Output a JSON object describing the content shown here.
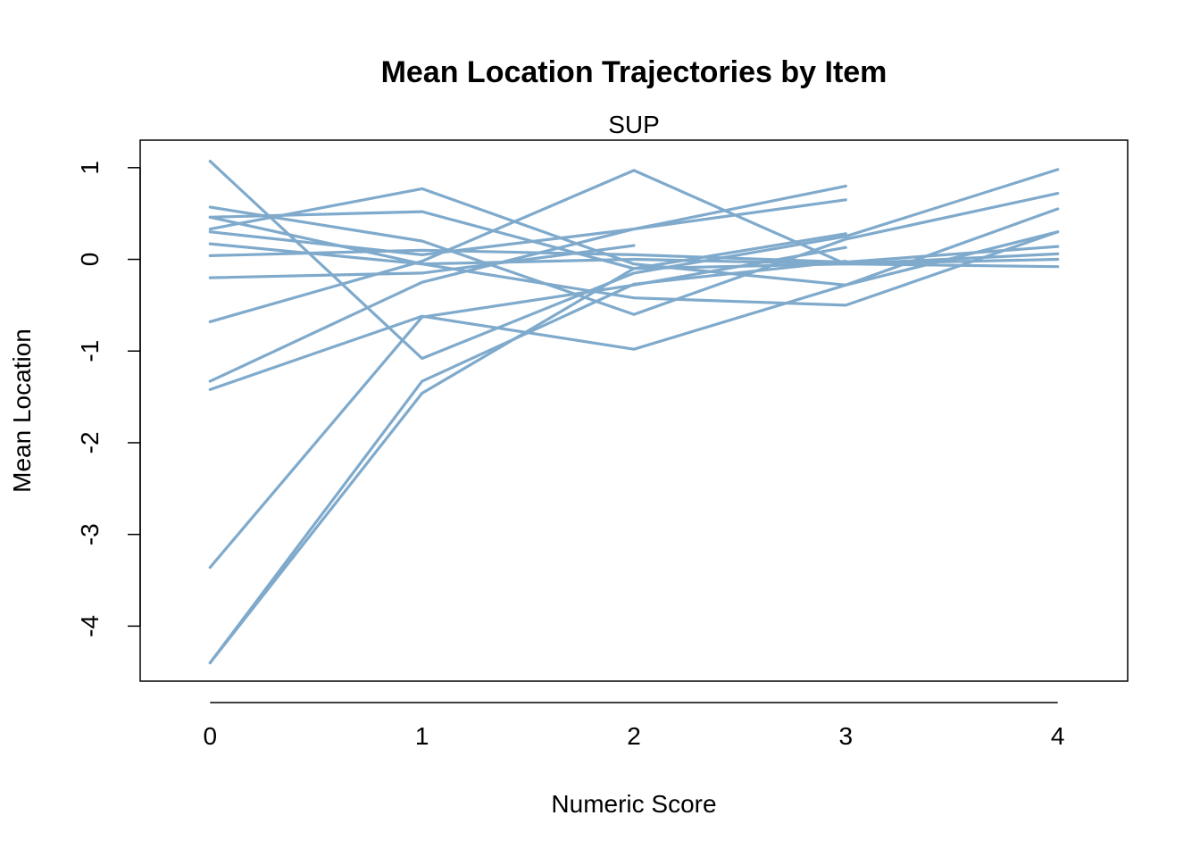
{
  "chart_data": {
    "type": "line",
    "title": "Mean Location Trajectories by Item",
    "subtitle": "SUP",
    "xlabel": "Numeric Score",
    "ylabel": "Mean Location",
    "x": [
      0,
      1,
      2,
      3,
      4
    ],
    "xticks": [
      "0",
      "1",
      "2",
      "3",
      "4"
    ],
    "yticks": [
      "-4",
      "-3",
      "-2",
      "-1",
      "0",
      "1"
    ],
    "ytick_values": [
      -4,
      -3,
      -2,
      -1,
      0,
      1
    ],
    "xlim": [
      -0.33,
      4.33
    ],
    "ylim": [
      -4.6,
      1.3
    ],
    "line_color": "#7faacc",
    "grid": false,
    "series": [
      {
        "values": [
          1.07,
          -1.08,
          -0.15,
          0.25,
          0.98
        ]
      },
      {
        "values": [
          0.57,
          0.2,
          -0.6,
          0.22,
          0.72
        ]
      },
      {
        "values": [
          0.46,
          0.52,
          -0.1,
          -0.05,
          -0.08
        ]
      },
      {
        "values": [
          0.33,
          0.77,
          -0.05,
          -0.28,
          0.55
        ]
      },
      {
        "values": [
          0.3,
          0.05,
          0.33,
          0.8,
          null
        ]
      },
      {
        "values": [
          0.46,
          -0.05,
          -0.42,
          -0.5,
          0.3
        ]
      },
      {
        "values": [
          0.17,
          -0.05,
          0.0,
          -0.05,
          0.06
        ]
      },
      {
        "values": [
          0.04,
          0.1,
          0.05,
          -0.03,
          0.14
        ]
      },
      {
        "values": [
          -0.2,
          -0.15,
          0.15,
          null,
          null
        ]
      },
      {
        "values": [
          -0.68,
          -0.02,
          0.97,
          -0.05,
          0.0
        ]
      },
      {
        "values": [
          -1.33,
          -0.25,
          0.33,
          0.65,
          null
        ]
      },
      {
        "values": [
          -1.42,
          -0.62,
          -0.98,
          -0.28,
          0.3
        ]
      },
      {
        "values": [
          -3.36,
          -0.63,
          -0.28,
          0.13,
          null
        ]
      },
      {
        "values": [
          -4.4,
          -1.33,
          -0.27,
          -0.02,
          null
        ]
      },
      {
        "values": [
          -4.4,
          -1.46,
          -0.1,
          0.28,
          null
        ]
      }
    ]
  }
}
